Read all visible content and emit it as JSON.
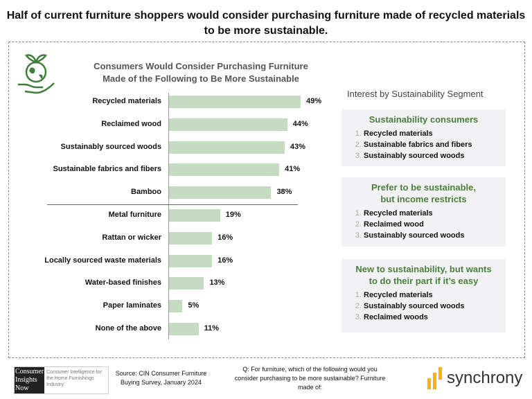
{
  "title": "Half of current furniture shoppers would consider purchasing furniture made of recycled materials to be more sustainable.",
  "chart_data": {
    "type": "bar",
    "orientation": "horizontal",
    "title": "Consumers Would Consider Purchasing Furniture Made of the Following to Be More Sustainable",
    "categories": [
      "Recycled materials",
      "Reclaimed wood",
      "Sustainably sourced woods",
      "Sustainable fabrics and fibers",
      "Bamboo",
      "Metal furniture",
      "Rattan or wicker",
      "Locally sourced waste materials",
      "Water-based finishes",
      "Paper laminates",
      "None of the above"
    ],
    "values": [
      49,
      44,
      43,
      41,
      38,
      19,
      16,
      16,
      13,
      5,
      11
    ],
    "labels": [
      "49%",
      "44%",
      "43%",
      "41%",
      "38%",
      "19%",
      "16%",
      "16%",
      "13%",
      "5%",
      "11%"
    ],
    "xlim": [
      0,
      100
    ],
    "grid": false,
    "bar_color": "#c5dcc2"
  },
  "segments": {
    "heading": "Interest by Sustainability Segment",
    "boxes": [
      {
        "title": "Sustainability consumers",
        "items": [
          "Recycled materials",
          "Sustainable fabrics and fibers",
          "Sustainably sourced woods"
        ]
      },
      {
        "title": "Prefer to be sustainable, but income restricts",
        "items": [
          "Recycled materials",
          "Reclaimed wood",
          "Sustainably sourced woods"
        ]
      },
      {
        "title": "New to sustainability, but wants to do their part if it’s easy",
        "items": [
          "Recycled materials",
          "Sustainably sourced woods",
          "Reclaimed woods"
        ]
      }
    ]
  },
  "footer": {
    "logo_text": "Consumer Insights Now",
    "logo_tagline": "Consumer Intelligence for the Home Furnishings Industry",
    "source": "Source: CIN Consumer Furniture Buying Survey, January 2024",
    "question": "Q: For furniture, which of the following would you consider purchasing to be more sustainable? Furniture made of:",
    "brand": "synchrony",
    "brand_color": "#f5b800"
  },
  "icon": "globe-in-hand-icon",
  "accent": "#4a7f3a"
}
